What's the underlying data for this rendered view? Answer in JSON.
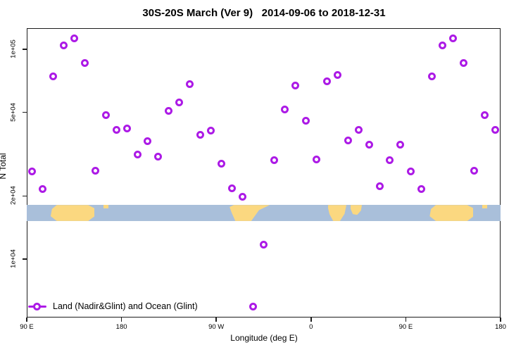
{
  "chart_data": {
    "type": "scatter",
    "title": "30S-20S March (Ver 9)   2014-09-06 to 2018-12-31",
    "xlabel": "Longitude (deg E)",
    "ylabel": "N Total",
    "grid": false,
    "legend": {
      "position": "bottom-left",
      "label": "Land (Nadir&Glint) and Ocean (Glint)"
    },
    "marker": {
      "shape": "open-circle",
      "color": "#AC1AE6"
    },
    "x_axis": {
      "description": "wrapped longitude axis, degrees east of 90E",
      "lim_deg": [
        0,
        450
      ],
      "ticks": [
        {
          "deg": 0,
          "label": "90 E"
        },
        {
          "deg": 90,
          "label": "180"
        },
        {
          "deg": 180,
          "label": "90 W"
        },
        {
          "deg": 270,
          "label": "0"
        },
        {
          "deg": 360,
          "label": "90 E"
        },
        {
          "deg": 450,
          "label": "180"
        }
      ]
    },
    "y_axis": {
      "scale": "log",
      "lim": [
        5270,
        126100
      ],
      "ticks": [
        {
          "value": 100000,
          "label": "1e+05"
        },
        {
          "value": 50000,
          "label": "5e+04"
        },
        {
          "value": 20000,
          "label": "2e+04"
        },
        {
          "value": 10000,
          "label": "1e+04"
        }
      ]
    },
    "map_strip": {
      "ocean_color": "#A9BFDA",
      "land_color": "#FBD880",
      "n_range": [
        15200,
        18100
      ],
      "land_regions": [
        {
          "name": "australia",
          "shape": "blob",
          "deg_range": [
            22.7,
            64.2
          ],
          "v_range": [
            0,
            1
          ]
        },
        {
          "name": "new-caledonia",
          "shape": "rect",
          "deg_range": [
            72.9,
            77.6
          ],
          "v_range": [
            0,
            0.22
          ]
        },
        {
          "name": "south-america",
          "shape": "taper",
          "deg_range": [
            191.9,
            230.7
          ],
          "v_range": [
            0,
            1
          ]
        },
        {
          "name": "africa",
          "shape": "africa",
          "deg_range": [
            286.2,
            303.6
          ],
          "v_range": [
            0,
            1
          ]
        },
        {
          "name": "madagascar",
          "shape": "island",
          "deg_range": [
            307.6,
            318.3
          ],
          "v_range": [
            0,
            0.62
          ]
        },
        {
          "name": "australia-east",
          "shape": "blob",
          "deg_range": [
            382.7,
            424.2
          ],
          "v_range": [
            0,
            1
          ]
        },
        {
          "name": "new-caledonia-east",
          "shape": "rect",
          "deg_range": [
            432.9,
            437.6
          ],
          "v_range": [
            0,
            0.22
          ]
        }
      ]
    },
    "points": [
      {
        "lon": "95E",
        "deg": 5,
        "n": 26100
      },
      {
        "lon": "105E",
        "deg": 15,
        "n": 21500
      },
      {
        "lon": "115E",
        "deg": 25,
        "n": 74500
      },
      {
        "lon": "125E",
        "deg": 35,
        "n": 104000
      },
      {
        "lon": "135E",
        "deg": 45,
        "n": 113000
      },
      {
        "lon": "145E",
        "deg": 55,
        "n": 85700
      },
      {
        "lon": "155E",
        "deg": 65,
        "n": 26300
      },
      {
        "lon": "165E",
        "deg": 75,
        "n": 48700
      },
      {
        "lon": "175E",
        "deg": 85,
        "n": 41400
      },
      {
        "lon": "175W",
        "deg": 95,
        "n": 41800
      },
      {
        "lon": "165W",
        "deg": 105,
        "n": 31600
      },
      {
        "lon": "155W",
        "deg": 115,
        "n": 36600
      },
      {
        "lon": "145W",
        "deg": 125,
        "n": 30900
      },
      {
        "lon": "135W",
        "deg": 135,
        "n": 51000
      },
      {
        "lon": "125W",
        "deg": 145,
        "n": 56000
      },
      {
        "lon": "115W",
        "deg": 155,
        "n": 68000
      },
      {
        "lon": "105W",
        "deg": 165,
        "n": 39000
      },
      {
        "lon": "95W",
        "deg": 175,
        "n": 41100
      },
      {
        "lon": "85W",
        "deg": 185,
        "n": 28400
      },
      {
        "lon": "75W",
        "deg": 195,
        "n": 21700
      },
      {
        "lon": "65W",
        "deg": 205,
        "n": 19900
      },
      {
        "lon": "55W",
        "deg": 215,
        "n": 5960
      },
      {
        "lon": "45W",
        "deg": 225,
        "n": 11700
      },
      {
        "lon": "35W",
        "deg": 235,
        "n": 29700
      },
      {
        "lon": "25W",
        "deg": 245,
        "n": 51800
      },
      {
        "lon": "15W",
        "deg": 255,
        "n": 67400
      },
      {
        "lon": "5W",
        "deg": 265,
        "n": 45800
      },
      {
        "lon": "5E",
        "deg": 275,
        "n": 29900
      },
      {
        "lon": "15E",
        "deg": 285,
        "n": 70600
      },
      {
        "lon": "25E",
        "deg": 295,
        "n": 75700
      },
      {
        "lon": "35E",
        "deg": 305,
        "n": 36900
      },
      {
        "lon": "45E",
        "deg": 315,
        "n": 41400
      },
      {
        "lon": "55E",
        "deg": 325,
        "n": 35200
      },
      {
        "lon": "65E",
        "deg": 335,
        "n": 22200
      },
      {
        "lon": "75E",
        "deg": 345,
        "n": 29700
      },
      {
        "lon": "85E",
        "deg": 355,
        "n": 35000
      },
      {
        "lon": "95E",
        "deg": 365,
        "n": 26100
      },
      {
        "lon": "105E",
        "deg": 375,
        "n": 21500
      },
      {
        "lon": "115E",
        "deg": 385,
        "n": 74500
      },
      {
        "lon": "125E",
        "deg": 395,
        "n": 104000
      },
      {
        "lon": "135E",
        "deg": 405,
        "n": 113000
      },
      {
        "lon": "145E",
        "deg": 415,
        "n": 85700
      },
      {
        "lon": "155E",
        "deg": 425,
        "n": 26300
      },
      {
        "lon": "165E",
        "deg": 435,
        "n": 48700
      },
      {
        "lon": "175E",
        "deg": 445,
        "n": 41400
      }
    ]
  }
}
